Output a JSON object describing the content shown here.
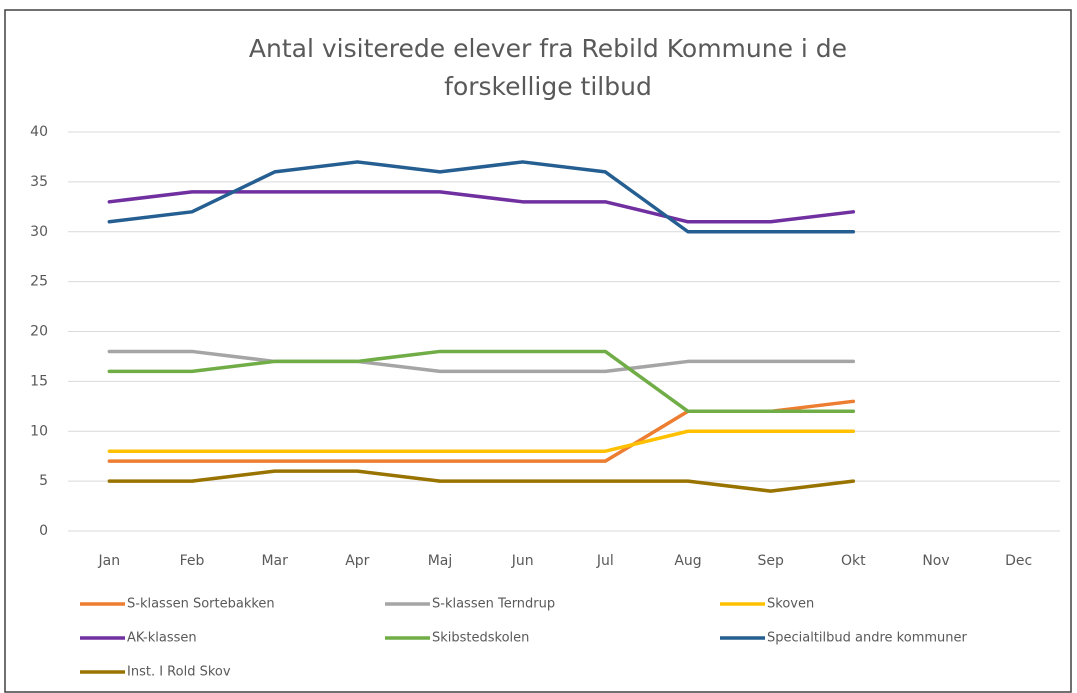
{
  "chart_data": {
    "type": "line",
    "title": [
      "Antal visiterede elever fra Rebild Kommune i de",
      "forskellige tilbud"
    ],
    "categories": [
      "Jan",
      "Feb",
      "Mar",
      "Apr",
      "Maj",
      "Jun",
      "Jul",
      "Aug",
      "Sep",
      "Okt",
      "Nov",
      "Dec"
    ],
    "series": [
      {
        "name": "S-klassen Sortebakken",
        "color": "#ed7d31",
        "values": [
          7,
          7,
          7,
          7,
          7,
          7,
          7,
          12,
          12,
          13,
          null,
          null
        ]
      },
      {
        "name": "S-klassen Terndrup",
        "color": "#a5a5a5",
        "values": [
          18,
          18,
          17,
          17,
          16,
          16,
          16,
          17,
          17,
          17,
          null,
          null
        ]
      },
      {
        "name": "Skoven",
        "color": "#ffc000",
        "values": [
          8,
          8,
          8,
          8,
          8,
          8,
          8,
          10,
          10,
          10,
          null,
          null
        ]
      },
      {
        "name": "AK-klassen",
        "color": "#7030a0",
        "values": [
          33,
          34,
          34,
          34,
          34,
          33,
          33,
          31,
          31,
          32,
          null,
          null
        ]
      },
      {
        "name": "Skibstedskolen",
        "color": "#70ad47",
        "values": [
          16,
          16,
          17,
          17,
          18,
          18,
          18,
          12,
          12,
          12,
          null,
          null
        ]
      },
      {
        "name": "Specialtilbud andre kommuner",
        "color": "#255e91",
        "values": [
          31,
          32,
          36,
          37,
          36,
          37,
          36,
          30,
          30,
          30,
          null,
          null
        ]
      },
      {
        "name": "Inst. I Rold Skov",
        "color": "#997300",
        "values": [
          5,
          5,
          6,
          6,
          5,
          5,
          5,
          5,
          4,
          5,
          null,
          null
        ]
      }
    ],
    "ylim": [
      0,
      40
    ],
    "yticks": [
      0,
      5,
      10,
      15,
      20,
      25,
      30,
      35,
      40
    ],
    "grid": true,
    "legend": "bottom"
  }
}
